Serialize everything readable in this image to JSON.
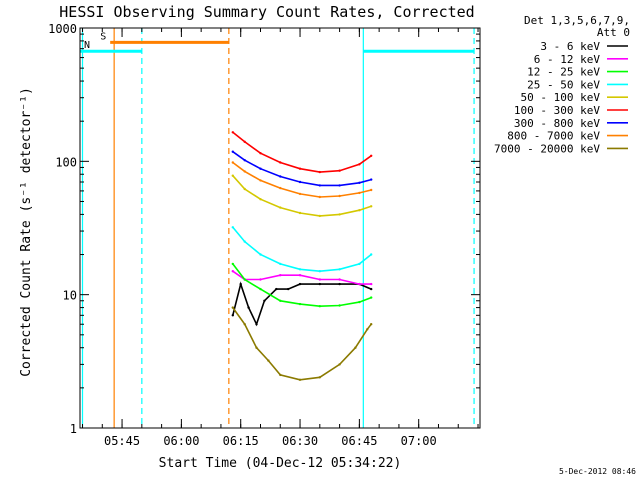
{
  "chart_data": {
    "type": "line",
    "title": "HESSI Observing Summary Count Rates, Corrected",
    "xlabel": "Start Time (04-Dec-12 05:34:22)",
    "ylabel": "Corrected Count Rate (s⁻¹ detector⁻¹)",
    "y_scale": "log",
    "ylim": [
      1,
      1000
    ],
    "xlim": [
      "05:34:22",
      "07:15:30"
    ],
    "x_ticks": [
      "05:45",
      "06:00",
      "06:15",
      "06:30",
      "06:45",
      "07:00"
    ],
    "y_ticks": [
      "1",
      "10",
      "100",
      "1000"
    ],
    "legend": {
      "placement": "right",
      "header": [
        "Det 1,3,5,6,7,9,",
        "Att 0"
      ]
    },
    "series": [
      {
        "name": "3 - 6 keV",
        "color": "#000000",
        "points": [
          [
            "06:13",
            7
          ],
          [
            "06:15",
            12
          ],
          [
            "06:17",
            8
          ],
          [
            "06:19",
            6
          ],
          [
            "06:21",
            9
          ],
          [
            "06:24",
            11
          ],
          [
            "06:27",
            11
          ],
          [
            "06:30",
            12
          ],
          [
            "06:35",
            12
          ],
          [
            "06:40",
            12
          ],
          [
            "06:45",
            12
          ],
          [
            "06:48",
            11
          ]
        ]
      },
      {
        "name": "6 - 12 keV",
        "color": "#ff00ff",
        "points": [
          [
            "06:13",
            15
          ],
          [
            "06:16",
            13
          ],
          [
            "06:20",
            13
          ],
          [
            "06:25",
            14
          ],
          [
            "06:30",
            14
          ],
          [
            "06:35",
            13
          ],
          [
            "06:40",
            13
          ],
          [
            "06:45",
            12
          ],
          [
            "06:48",
            12
          ]
        ]
      },
      {
        "name": "12 - 25 keV",
        "color": "#00ff00",
        "points": [
          [
            "06:13",
            17
          ],
          [
            "06:16",
            13
          ],
          [
            "06:20",
            11
          ],
          [
            "06:25",
            9
          ],
          [
            "06:30",
            8.5
          ],
          [
            "06:35",
            8.2
          ],
          [
            "06:40",
            8.3
          ],
          [
            "06:45",
            8.8
          ],
          [
            "06:48",
            9.5
          ]
        ]
      },
      {
        "name": "25 - 50 keV",
        "color": "#00ffff",
        "points": [
          [
            "06:13",
            32
          ],
          [
            "06:16",
            25
          ],
          [
            "06:20",
            20
          ],
          [
            "06:25",
            17
          ],
          [
            "06:30",
            15.5
          ],
          [
            "06:35",
            15
          ],
          [
            "06:40",
            15.5
          ],
          [
            "06:45",
            17
          ],
          [
            "06:48",
            20
          ]
        ]
      },
      {
        "name": "50 - 100 keV",
        "color": "#d4c800",
        "points": [
          [
            "06:13",
            78
          ],
          [
            "06:16",
            62
          ],
          [
            "06:20",
            52
          ],
          [
            "06:25",
            45
          ],
          [
            "06:30",
            41
          ],
          [
            "06:35",
            39
          ],
          [
            "06:40",
            40
          ],
          [
            "06:45",
            43
          ],
          [
            "06:48",
            46
          ]
        ]
      },
      {
        "name": "100 - 300 keV",
        "color": "#ff0000",
        "points": [
          [
            "06:13",
            165
          ],
          [
            "06:16",
            140
          ],
          [
            "06:20",
            115
          ],
          [
            "06:25",
            98
          ],
          [
            "06:30",
            88
          ],
          [
            "06:35",
            83
          ],
          [
            "06:40",
            85
          ],
          [
            "06:45",
            95
          ],
          [
            "06:48",
            110
          ]
        ]
      },
      {
        "name": "300 - 800 keV",
        "color": "#0000ff",
        "points": [
          [
            "06:13",
            118
          ],
          [
            "06:16",
            102
          ],
          [
            "06:20",
            88
          ],
          [
            "06:25",
            77
          ],
          [
            "06:30",
            70
          ],
          [
            "06:35",
            66
          ],
          [
            "06:40",
            66
          ],
          [
            "06:45",
            69
          ],
          [
            "06:48",
            73
          ]
        ]
      },
      {
        "name": "800 - 7000 keV",
        "color": "#ff8000",
        "points": [
          [
            "06:13",
            98
          ],
          [
            "06:16",
            84
          ],
          [
            "06:20",
            72
          ],
          [
            "06:25",
            63
          ],
          [
            "06:30",
            57
          ],
          [
            "06:35",
            54
          ],
          [
            "06:40",
            55
          ],
          [
            "06:45",
            58
          ],
          [
            "06:48",
            61
          ]
        ]
      },
      {
        "name": "7000 - 20000 keV",
        "color": "#8b7a00",
        "points": [
          [
            "06:13",
            8
          ],
          [
            "06:16",
            6
          ],
          [
            "06:19",
            4
          ],
          [
            "06:22",
            3.2
          ],
          [
            "06:25",
            2.5
          ],
          [
            "06:30",
            2.3
          ],
          [
            "06:35",
            2.4
          ],
          [
            "06:40",
            3
          ],
          [
            "06:44",
            4
          ],
          [
            "06:47",
            5.5
          ],
          [
            "06:48",
            6
          ]
        ]
      }
    ],
    "annotations": {
      "attenuator_bars": [
        {
          "label": "S",
          "color": "#ff8000",
          "start": "05:42",
          "end": "06:12",
          "y": 780
        },
        {
          "label": "N",
          "color": "#00ffff",
          "start": "05:34:22",
          "end": "05:50",
          "y": 670
        },
        {
          "label": "",
          "color": "#00ffff",
          "start": "06:46",
          "end": "07:14",
          "y": 670
        }
      ],
      "vertical_lines": [
        {
          "time": "05:35",
          "color": "#00ffff",
          "style": "solid"
        },
        {
          "time": "05:43",
          "color": "#ff8000",
          "style": "solid"
        },
        {
          "time": "05:50",
          "color": "#00ffff",
          "style": "dashed"
        },
        {
          "time": "06:12",
          "color": "#ff8000",
          "style": "dashed"
        },
        {
          "time": "06:46",
          "color": "#00ffff",
          "style": "solid"
        },
        {
          "time": "07:14",
          "color": "#00ffff",
          "style": "dashed"
        }
      ]
    },
    "timestamp": "5-Dec-2012 08:46"
  }
}
